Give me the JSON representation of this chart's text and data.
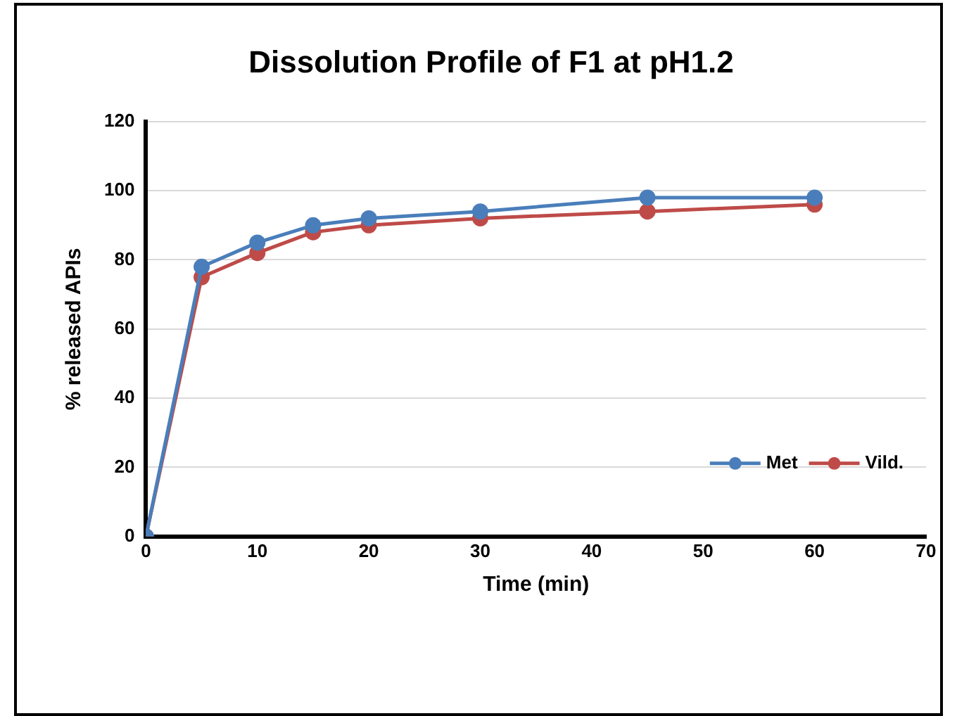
{
  "chart_data": {
    "type": "line",
    "title": "Dissolution Profile of F1 at pH1.2",
    "xlabel": "Time (min)",
    "ylabel": "% released APIs",
    "x": [
      0,
      5,
      10,
      15,
      20,
      30,
      45,
      60
    ],
    "series": [
      {
        "name": "Met",
        "color": "#4a7ebb",
        "values": [
          0,
          78,
          85,
          90,
          92,
          94,
          98,
          98
        ]
      },
      {
        "name": "Vild.",
        "color": "#be4b48",
        "values": [
          0,
          75,
          82,
          88,
          90,
          92,
          94,
          96
        ]
      }
    ],
    "xlim": [
      0,
      70
    ],
    "xticks": [
      0,
      10,
      20,
      30,
      40,
      50,
      60,
      70
    ],
    "ylim": [
      0,
      120
    ],
    "yticks": [
      0,
      20,
      40,
      60,
      80,
      100,
      120
    ],
    "grid": "y",
    "legend": "bottom right",
    "marker": "circle",
    "line_style": "solid"
  }
}
